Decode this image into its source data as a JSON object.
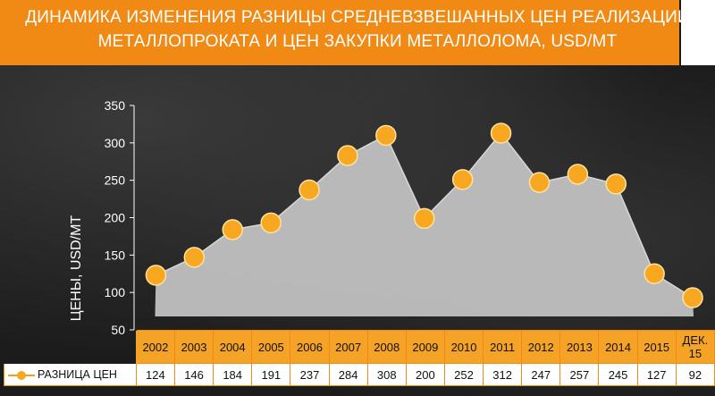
{
  "header": {
    "title_line1": "ДИНАМИКА ИЗМЕНЕНИЯ РАЗНИЦЫ  СРЕДНЕВЗВЕШАННЫХ ЦЕН РЕАЛИЗАЦИИ",
    "title_line2": "МЕТАЛЛОПРОКАТА И ЦЕН ЗАКУПКИ МЕТАЛЛОЛОМА, USD/МТ"
  },
  "colors": {
    "accent": "#f08a14",
    "marker": "#f7a720",
    "area_fill": "#c4c4c4",
    "background": "#1c1c1c"
  },
  "chart_data": {
    "type": "area",
    "title": "ДИНАМИКА ИЗМЕНЕНИЯ РАЗНИЦЫ  СРЕДНЕВЗВЕШАННЫХ ЦЕН РЕАЛИЗАЦИИ МЕТАЛЛОПРОКАТА И ЦЕН ЗАКУПКИ МЕТАЛЛОЛОМА, USD/МТ",
    "ylabel": "ЦЕНЫ, USD/МТ",
    "xlabel": "",
    "ylim": [
      50,
      350
    ],
    "yticks": [
      50,
      100,
      150,
      200,
      250,
      300,
      350
    ],
    "grid": false,
    "categories": [
      "2002",
      "2003",
      "2004",
      "2005",
      "2006",
      "2007",
      "2008",
      "2009",
      "2010",
      "2011",
      "2012",
      "2013",
      "2014",
      "2015",
      "ДЕК. 15"
    ],
    "series": [
      {
        "name": "РАЗНИЦА ЦЕН",
        "values": [
          124,
          146,
          184,
          191,
          237,
          284,
          308,
          200,
          252,
          312,
          247,
          257,
          245,
          127,
          92
        ],
        "plotted": [
          123,
          147,
          184,
          193,
          237,
          283,
          310,
          199,
          251,
          313,
          247,
          258,
          245,
          125,
          93
        ]
      }
    ],
    "legend_position": "bottom-left (data table)"
  }
}
